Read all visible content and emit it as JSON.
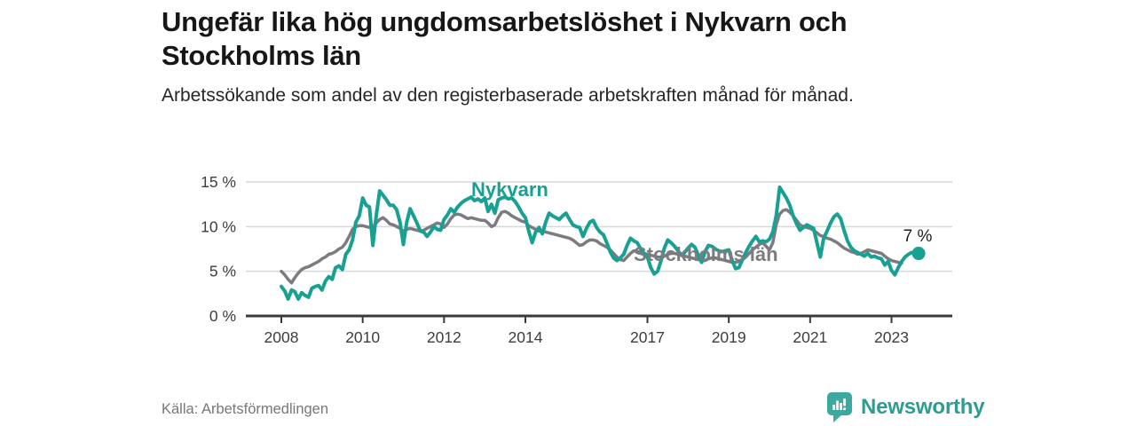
{
  "header": {
    "title": "Ungefär lika hög ungdomsarbetslöshet i Nykvarn och Stockholms län",
    "subtitle": "Arbetssökande som andel av den registerbaserade arbetskraften månad för månad."
  },
  "footer": {
    "source": "Källa: Arbetsförmedlingen",
    "brand": "Newsworthy",
    "brand_icon": "newsworthy-speech-bubble-bar-chart-icon",
    "brand_text_color": "#2d9c92",
    "brand_icon_color": "#3ca99e"
  },
  "chart_data": {
    "type": "line",
    "frequency": "monthly",
    "x_start": "2008-01",
    "x_end": "2023-09",
    "ylim": [
      0,
      15.5
    ],
    "grid": true,
    "legend_position": "inline-labels",
    "y_tick_labels": [
      "0 %",
      "5 %",
      "10 %",
      "15 %"
    ],
    "y_tick_values": [
      0,
      5,
      10,
      15
    ],
    "x_tick_labels": [
      "2008",
      "2010",
      "2012",
      "2014",
      "2017",
      "2019",
      "2021",
      "2023"
    ],
    "x_tick_years": [
      2008,
      2010,
      2012,
      2014,
      2017,
      2019,
      2021,
      2023
    ],
    "end_label": "7 %",
    "end_value": 7,
    "series": [
      {
        "name": "Stockholms län",
        "color": "#7c7c80",
        "end_dot": false,
        "values": [
          5.0,
          4.6,
          4.1,
          3.7,
          4.3,
          4.8,
          5.2,
          5.4,
          5.5,
          5.7,
          5.9,
          6.1,
          6.4,
          6.6,
          6.9,
          7.0,
          7.2,
          7.5,
          7.7,
          8.2,
          8.9,
          9.7,
          10.0,
          10.1,
          10.1,
          10.0,
          9.9,
          10.0,
          10.4,
          10.8,
          11.0,
          10.7,
          10.3,
          10.2,
          10.0,
          9.8,
          9.5,
          9.7,
          9.8,
          9.7,
          9.6,
          9.5,
          9.6,
          9.8,
          10.0,
          10.2,
          10.4,
          10.3,
          9.9,
          10.3,
          10.9,
          11.3,
          11.4,
          11.3,
          11.1,
          10.9,
          11.0,
          10.9,
          10.8,
          10.7,
          10.7,
          10.4,
          10.0,
          10.2,
          11.0,
          11.6,
          11.7,
          11.5,
          11.2,
          11.0,
          10.8,
          10.6,
          10.5,
          10.1,
          9.9,
          9.7,
          9.5,
          9.5,
          9.4,
          9.3,
          9.2,
          9.1,
          9.0,
          8.9,
          8.8,
          8.7,
          8.5,
          8.2,
          7.9,
          8.0,
          8.3,
          8.5,
          8.5,
          8.4,
          8.1,
          7.9,
          7.7,
          7.4,
          7.0,
          6.6,
          6.3,
          6.2,
          6.6,
          7.0,
          7.3,
          7.2,
          7.1,
          7.0,
          6.9,
          6.8,
          6.7,
          6.6,
          6.6,
          6.7,
          6.9,
          7.0,
          7.0,
          6.9,
          6.8,
          6.7,
          6.6,
          6.5,
          6.4,
          6.3,
          6.2,
          6.2,
          6.4,
          6.5,
          6.5,
          6.4,
          6.3,
          6.2,
          6.1,
          6.0,
          6.0,
          6.1,
          6.3,
          6.6,
          7.0,
          7.4,
          7.7,
          8.0,
          8.2,
          7.8,
          7.4,
          8.2,
          10.2,
          11.4,
          11.8,
          11.9,
          11.6,
          11.2,
          10.7,
          10.2,
          10.0,
          9.9,
          9.8,
          9.6,
          9.3,
          9.0,
          8.9,
          8.7,
          8.6,
          8.4,
          8.2,
          7.9,
          7.6,
          7.4,
          7.2,
          7.1,
          6.9,
          7.0,
          7.2,
          7.4,
          7.3,
          7.2,
          7.1,
          7.0,
          6.7,
          6.4,
          6.2,
          6.1,
          6.0,
          5.9,
          null,
          null,
          null,
          null,
          null
        ]
      },
      {
        "name": "Nykvarn",
        "color": "#18a093",
        "end_dot": true,
        "values": [
          3.3,
          2.8,
          1.9,
          2.9,
          2.7,
          1.9,
          2.6,
          2.3,
          2.1,
          3.1,
          3.3,
          3.4,
          2.9,
          3.9,
          4.4,
          4.1,
          5.4,
          5.6,
          5.2,
          6.9,
          7.4,
          8.5,
          10.5,
          11.2,
          13.2,
          12.4,
          12.2,
          7.9,
          11.2,
          14.0,
          13.5,
          13.0,
          12.4,
          12.4,
          11.9,
          10.5,
          8.0,
          10.5,
          12.0,
          11.2,
          10.4,
          9.5,
          9.4,
          8.9,
          9.4,
          10.0,
          9.7,
          9.6,
          10.8,
          11.3,
          12.0,
          11.6,
          12.2,
          12.6,
          12.9,
          13.1,
          13.3,
          12.9,
          13.1,
          12.8,
          13.2,
          11.7,
          12.5,
          11.5,
          13.0,
          13.2,
          13.3,
          13.1,
          13.2,
          12.8,
          12.2,
          11.5,
          11.0,
          9.5,
          8.2,
          9.4,
          9.9,
          9.2,
          10.5,
          11.5,
          11.2,
          11.0,
          10.8,
          11.2,
          11.5,
          10.8,
          10.2,
          10.0,
          9.9,
          8.9,
          9.8,
          10.5,
          10.7,
          9.9,
          9.4,
          9.1,
          8.2,
          7.2,
          6.5,
          6.2,
          6.5,
          6.9,
          7.9,
          8.7,
          8.4,
          8.2,
          7.5,
          7.0,
          6.6,
          5.4,
          4.7,
          5.0,
          6.2,
          7.6,
          8.5,
          8.2,
          7.8,
          7.3,
          6.8,
          7.1,
          7.6,
          8.0,
          7.7,
          6.8,
          6.0,
          7.2,
          7.9,
          7.8,
          7.5,
          7.3,
          7.2,
          7.3,
          7.4,
          6.2,
          5.3,
          5.4,
          6.3,
          7.1,
          7.8,
          8.4,
          8.9,
          8.3,
          8.4,
          8.3,
          8.6,
          9.4,
          11.2,
          14.4,
          13.8,
          13.2,
          12.4,
          11.2,
          10.3,
          9.6,
          9.9,
          10.2,
          10.0,
          9.8,
          8.2,
          6.6,
          8.7,
          9.5,
          10.4,
          11.1,
          11.4,
          10.9,
          9.6,
          8.4,
          7.7,
          7.3,
          7.1,
          6.9,
          6.7,
          7.0,
          6.6,
          6.7,
          6.5,
          6.4,
          5.7,
          6.1,
          5.1,
          4.6,
          5.4,
          6.1,
          6.6,
          6.9,
          7.1,
          6.9,
          7.0
        ]
      }
    ]
  }
}
